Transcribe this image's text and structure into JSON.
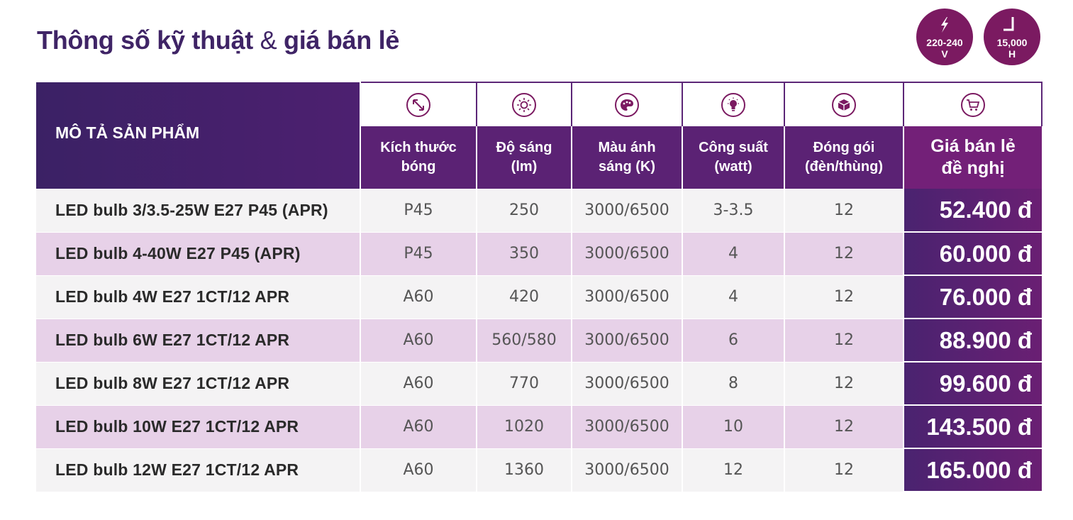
{
  "title": {
    "main": "Thông số kỹ thuật",
    "amp": "&",
    "tail": "giá bán lẻ"
  },
  "badges": {
    "voltage": {
      "icon": "lightning-icon",
      "line1": "220-240",
      "line2": "V"
    },
    "lifetime": {
      "icon": "clock-hand-icon",
      "line1": "15,000",
      "line2": "H"
    }
  },
  "table": {
    "desc_header": "MÔ TẢ SẢN PHẨM",
    "columns": [
      {
        "icon": "resize-arrow-icon",
        "label1": "Kích thước",
        "label2": "bóng"
      },
      {
        "icon": "sun-brightness-icon",
        "label1": "Độ sáng",
        "label2": "(lm)"
      },
      {
        "icon": "palette-icon",
        "label1": "Màu ánh",
        "label2": "sáng (K)"
      },
      {
        "icon": "bulb-icon",
        "label1": "Công suất",
        "label2": "(watt)"
      },
      {
        "icon": "box-icon",
        "label1": "Đóng gói",
        "label2": "(đèn/thùng)"
      },
      {
        "icon": "cart-icon",
        "label1": "Giá bán lẻ",
        "label2": "đề nghị"
      }
    ],
    "rows": [
      {
        "name": "LED bulb 3/3.5-25W E27 P45 (APR)",
        "size": "P45",
        "lumen": "250",
        "color_temp": "3000/6500",
        "watt": "3-3.5",
        "pack": "12",
        "price": "52.400 đ"
      },
      {
        "name": "LED bulb 4-40W E27 P45 (APR)",
        "size": "P45",
        "lumen": "350",
        "color_temp": "3000/6500",
        "watt": "4",
        "pack": "12",
        "price": "60.000 đ"
      },
      {
        "name": "LED bulb 4W E27 1CT/12 APR",
        "size": "A60",
        "lumen": "420",
        "color_temp": "3000/6500",
        "watt": "4",
        "pack": "12",
        "price": "76.000 đ"
      },
      {
        "name": "LED bulb 6W E27 1CT/12 APR",
        "size": "A60",
        "lumen": "560/580",
        "color_temp": "3000/6500",
        "watt": "6",
        "pack": "12",
        "price": "88.900 đ"
      },
      {
        "name": "LED bulb 8W E27 1CT/12 APR",
        "size": "A60",
        "lumen": "770",
        "color_temp": "3000/6500",
        "watt": "8",
        "pack": "12",
        "price": "99.600 đ"
      },
      {
        "name": "LED bulb 10W E27 1CT/12 APR",
        "size": "A60",
        "lumen": "1020",
        "color_temp": "3000/6500",
        "watt": "10",
        "pack": "12",
        "price": "143.500 đ"
      },
      {
        "name": "LED bulb 12W E27 1CT/12 APR",
        "size": "A60",
        "lumen": "1360",
        "color_temp": "3000/6500",
        "watt": "12",
        "pack": "12",
        "price": "165.000 đ"
      }
    ]
  },
  "colors": {
    "brand_purple": "#3f2466",
    "badge_magenta": "#7b1a61",
    "row_alt": "#e7d1e8",
    "row_base": "#f4f3f4"
  }
}
